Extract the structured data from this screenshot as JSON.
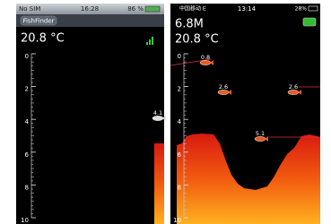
{
  "left_screen": {
    "status": {
      "carrier": "No SIM",
      "time": "16:28",
      "battery": "86 %"
    },
    "button": "FishFinder",
    "temperature": "20.8 °C",
    "depth_ticks": [
      0,
      2,
      4,
      6,
      8,
      10
    ],
    "fish": [
      4.1
    ]
  },
  "right_screen": {
    "status": {
      "carrier": "中国移动 E",
      "time": "13:14",
      "battery": "28%"
    },
    "depth": "6.8M",
    "temperature": "20.8 °C",
    "depth_ticks": [
      0,
      2,
      4,
      6,
      8,
      10
    ],
    "fish": [
      0.8,
      2.6,
      2.6,
      5.1
    ]
  }
}
